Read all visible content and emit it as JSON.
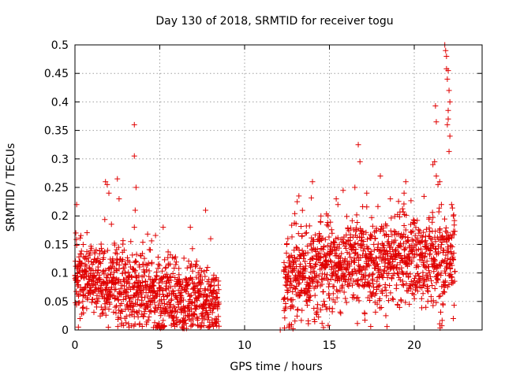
{
  "chart_data": {
    "type": "scatter",
    "title": "Day 130 of 2018, SRMTID for receiver togu",
    "xlabel": "GPS time / hours",
    "ylabel": "SRMTID / TECUs",
    "xlim": [
      0,
      24
    ],
    "ylim": [
      0,
      0.5
    ],
    "xticks": [
      0,
      5,
      10,
      15,
      20
    ],
    "xtick_labels": [
      "0",
      "5",
      "10",
      "15",
      "20"
    ],
    "yticks": [
      0,
      0.05,
      0.1,
      0.15,
      0.2,
      0.25,
      0.3,
      0.35,
      0.4,
      0.45,
      0.5
    ],
    "ytick_labels": [
      "0",
      "0.05",
      "0.1",
      "0.15",
      "0.2",
      "0.25",
      "0.3",
      "0.35",
      "0.4",
      "0.45",
      "0.5"
    ],
    "grid": true,
    "marker": "+",
    "color": "#e00000",
    "series": [
      {
        "name": "togu",
        "segments": [
          {
            "x_start": 0.0,
            "x_end": 8.5,
            "y_base": [
              0.09,
              0.085,
              0.07,
              0.055,
              0.05
            ],
            "y_spread": 0.035
          },
          {
            "x_start": 12.3,
            "x_end": 22.4,
            "y_base": [
              0.09,
              0.11,
              0.12,
              0.125,
              0.12
            ],
            "y_spread": 0.04
          }
        ],
        "points": [
          [
            0.05,
            0.17
          ],
          [
            0.1,
            0.22
          ],
          [
            0.2,
            0.005
          ],
          [
            0.3,
            0.02
          ],
          [
            0.5,
            0.03
          ],
          [
            1.8,
            0.26
          ],
          [
            1.9,
            0.255
          ],
          [
            2.0,
            0.24
          ],
          [
            2.5,
            0.265
          ],
          [
            2.6,
            0.23
          ],
          [
            3.5,
            0.36
          ],
          [
            3.5,
            0.305
          ],
          [
            3.6,
            0.25
          ],
          [
            3.55,
            0.21
          ],
          [
            3.5,
            0.18
          ],
          [
            5.2,
            0.18
          ],
          [
            6.8,
            0.18
          ],
          [
            7.7,
            0.21
          ],
          [
            8.0,
            0.16
          ],
          [
            12.1,
            0.0
          ],
          [
            13.2,
            0.235
          ],
          [
            13.1,
            0.225
          ],
          [
            14.0,
            0.26
          ],
          [
            14.5,
            0.2
          ],
          [
            15.4,
            0.23
          ],
          [
            15.5,
            0.22
          ],
          [
            16.5,
            0.25
          ],
          [
            16.7,
            0.325
          ],
          [
            16.8,
            0.295
          ],
          [
            17.2,
            0.24
          ],
          [
            18.0,
            0.27
          ],
          [
            19.5,
            0.26
          ],
          [
            19.4,
            0.24
          ],
          [
            21.1,
            0.29
          ],
          [
            21.2,
            0.295
          ],
          [
            21.3,
            0.27
          ],
          [
            21.25,
            0.393
          ],
          [
            21.3,
            0.365
          ],
          [
            21.4,
            0.255
          ],
          [
            21.6,
            0.22
          ],
          [
            21.8,
            0.5
          ],
          [
            21.85,
            0.49
          ],
          [
            21.9,
            0.48
          ],
          [
            21.9,
            0.458
          ],
          [
            21.95,
            0.44
          ],
          [
            22.0,
            0.455
          ],
          [
            22.05,
            0.42
          ],
          [
            22.1,
            0.4
          ],
          [
            22.0,
            0.385
          ],
          [
            22.0,
            0.37
          ],
          [
            21.95,
            0.36
          ],
          [
            22.1,
            0.34
          ],
          [
            22.05,
            0.313
          ],
          [
            22.2,
            0.22
          ],
          [
            22.3,
            0.2
          ],
          [
            21.5,
            0.26
          ],
          [
            20.8,
            0.05
          ],
          [
            22.3,
            0.02
          ]
        ]
      }
    ]
  }
}
